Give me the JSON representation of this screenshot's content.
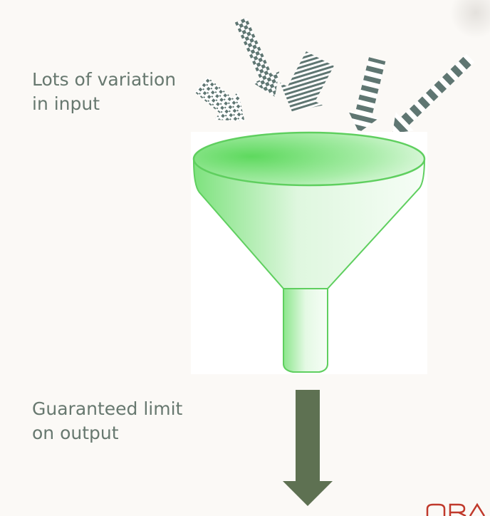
{
  "labels": {
    "input": {
      "line1": "Lots of variation",
      "line2": "in input"
    },
    "output": {
      "line1": "Guaranteed limit",
      "line2": "on output"
    }
  },
  "colors": {
    "background": "#fbf9f6",
    "text": "#67786f",
    "funnel_green": "#6fde6f",
    "funnel_outline": "#5fcf5f",
    "arrow": "#5e7152",
    "input_pattern_dark": "#5f7672",
    "logo_red": "#c0392b"
  },
  "icons": {
    "input_arrows": "patterned-arrow-icons",
    "funnel": "funnel-icon",
    "output_arrow": "down-arrow-icon",
    "logo": "logo-fragment"
  }
}
